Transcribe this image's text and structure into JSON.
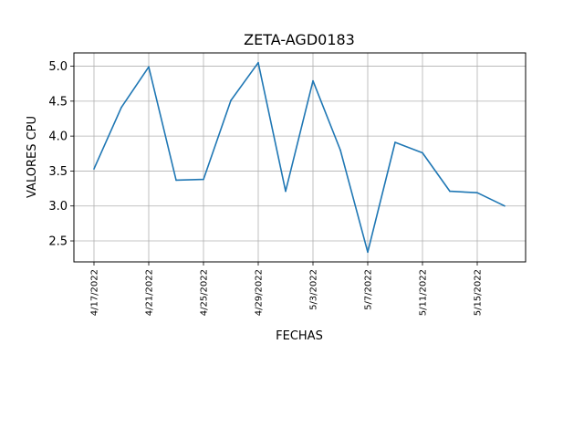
{
  "chart_data": {
    "type": "line",
    "title": "ZETA-AGD0183",
    "xlabel": "FECHAS",
    "ylabel": "VALORES CPU",
    "x": [
      "4/17/2022",
      "4/19/2022",
      "4/21/2022",
      "4/23/2022",
      "4/25/2022",
      "4/27/2022",
      "4/29/2022",
      "5/1/2022",
      "5/3/2022",
      "5/5/2022",
      "5/7/2022",
      "5/9/2022",
      "5/11/2022",
      "5/13/2022",
      "5/15/2022",
      "5/17/2022"
    ],
    "x_tick_labels": [
      "4/17/2022",
      "4/21/2022",
      "4/25/2022",
      "4/29/2022",
      "5/3/2022",
      "5/7/2022",
      "5/11/2022",
      "5/15/2022"
    ],
    "series": [
      {
        "values": [
          3.53,
          4.41,
          4.99,
          3.37,
          3.38,
          4.51,
          5.05,
          3.21,
          4.79,
          3.8,
          2.34,
          3.91,
          3.76,
          3.21,
          3.19,
          3.0
        ]
      }
    ],
    "y_ticks": [
      2.5,
      3.0,
      3.5,
      4.0,
      4.5,
      5.0
    ],
    "ylim": [
      2.2,
      5.19
    ],
    "grid": true,
    "line_color": "#1f77b4"
  }
}
